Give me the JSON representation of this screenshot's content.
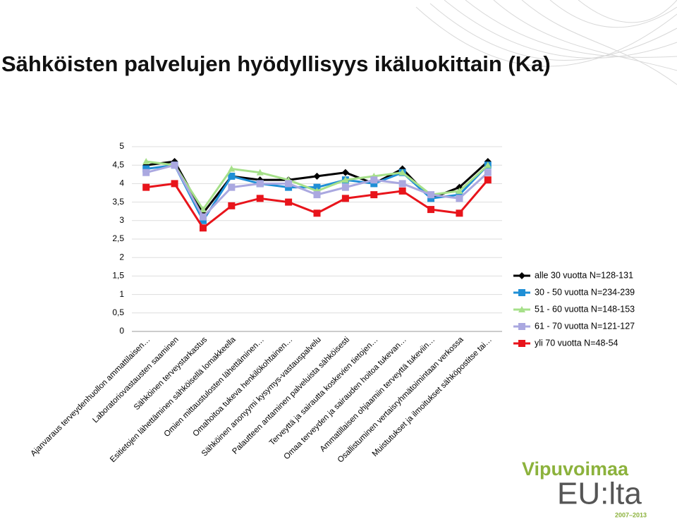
{
  "chart_data": {
    "type": "line",
    "title": "Sähköisten palvelujen hyödyllisyys ikäluokittain (Ka)",
    "categories": [
      "Ajanvaraus terveydenhuollon ammattilaisen…",
      "Laboratoriovastausten saaminen",
      "Sähköinen terveystarkastus",
      "Esitietojen lähettäminen sähköisellä lomakkeella",
      "Omien mittaustulosten lähettäminen…",
      "Omahoitoa tukeva henkilökohtainen…",
      "Sähköinen anonyymi kysymys-vastauspalvelu",
      "Palautteen antaminen palveluista sähköisesti",
      "Terveyttä ja sairautta koskevien tietojen…",
      "Omaa terveyden ja sairauden hoitoa tukevan…",
      "Ammatillaisen ohjaamiin terveyttä tukeviin…",
      "Osallistuminen vertaisryhmätoimintaan verkossa",
      "Muistutukset ja ilmoitukset sähköpostitse tai…"
    ],
    "series": [
      {
        "name": "alle 30 vuotta N=128-131",
        "color": "#000000",
        "marker": "diamond",
        "values": [
          4.5,
          4.6,
          3.2,
          4.2,
          4.1,
          4.1,
          4.2,
          4.3,
          4.0,
          4.4,
          3.6,
          3.9,
          4.6
        ]
      },
      {
        "name": "30 - 50 vuotta N=234-239",
        "color": "#1f8fd6",
        "marker": "square",
        "values": [
          4.4,
          4.5,
          3.0,
          4.2,
          4.0,
          3.9,
          3.9,
          4.1,
          4.0,
          4.3,
          3.6,
          3.7,
          4.5
        ]
      },
      {
        "name": "51 - 60 vuotta N=148-153",
        "color": "#a6e08a",
        "marker": "triangle",
        "values": [
          4.6,
          4.5,
          3.3,
          4.4,
          4.3,
          4.1,
          3.8,
          4.1,
          4.2,
          4.3,
          3.7,
          3.8,
          4.5
        ]
      },
      {
        "name": "61 - 70 vuotta N=121-127",
        "color": "#aaa8e0",
        "marker": "square",
        "values": [
          4.3,
          4.5,
          3.1,
          3.9,
          4.0,
          4.0,
          3.7,
          3.9,
          4.1,
          4.0,
          3.7,
          3.6,
          4.3
        ]
      },
      {
        "name": "yli 70 vuotta N=48-54",
        "color": "#e8141b",
        "marker": "square",
        "values": [
          3.9,
          4.0,
          2.8,
          3.4,
          3.6,
          3.5,
          3.2,
          3.6,
          3.7,
          3.8,
          3.3,
          3.2,
          4.1
        ]
      }
    ],
    "ylim": [
      0,
      5
    ],
    "yticks": [
      0,
      {
        "value": 0.5,
        "label": "0,5"
      },
      1,
      {
        "value": 1.5,
        "label": "1,5"
      },
      2,
      {
        "value": 2.5,
        "label": "2,5"
      },
      3,
      {
        "value": 3.5,
        "label": "3,5"
      },
      4,
      {
        "value": 4.5,
        "label": "4,5"
      },
      5
    ],
    "grid": true,
    "legend": "right"
  },
  "logo": {
    "name": "Vipuvoimaa",
    "sub": "EU:lta",
    "years": "2007–2013"
  }
}
